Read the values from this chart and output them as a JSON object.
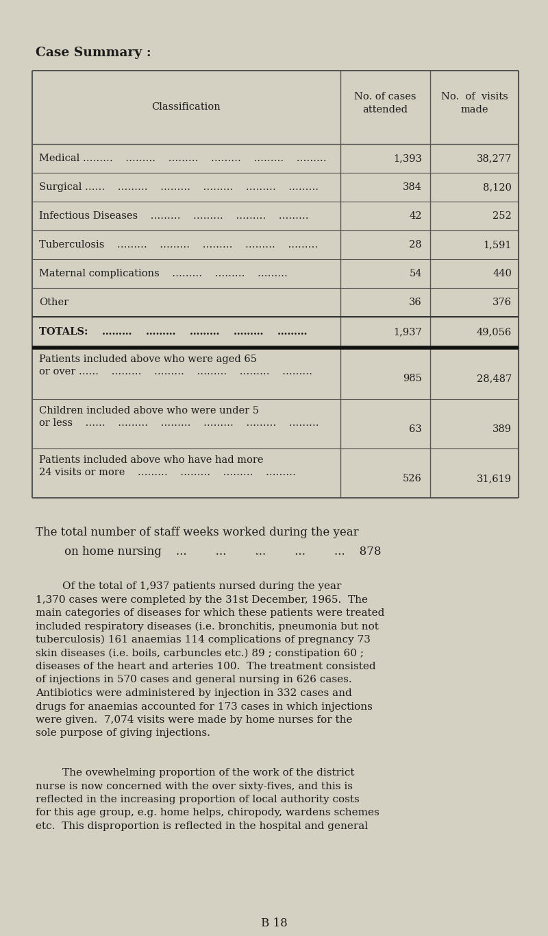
{
  "bg_color": "#d4d1c2",
  "title": "Case Summary :",
  "table_rows": [
    [
      "Medical ………    ………    ………    ………    ………    ………",
      "1,393",
      "38,277"
    ],
    [
      "Surgical ……    ………    ………    ………    ………    ………",
      "384",
      "8,120"
    ],
    [
      "Infectious Diseases    ………    ………    ………    ………",
      "42",
      "252"
    ],
    [
      "Tuberculosis    ………    ………    ………    ………    ………",
      "28",
      "1,591"
    ],
    [
      "Maternal complications    ………    ………    ………",
      "54",
      "440"
    ],
    [
      "Other",
      "36",
      "376"
    ]
  ],
  "totals_row": [
    "TOTALS:    ………    ………    ………    ………    ………",
    "1,937",
    "49,056"
  ],
  "extra_rows": [
    [
      "Patients included above who were aged 65",
      "or over ……    ………    ………    ………    ………    ………",
      "985",
      "28,487"
    ],
    [
      "Children included above who were under 5",
      "or less    ……    ………    ………    ………    ………    ………",
      "63",
      "389"
    ],
    [
      "Patients included above who have had more",
      "24 visits or more    ………    ………    ………    ………",
      "526",
      "31,619"
    ]
  ],
  "staff_line1": "The total number of staff weeks worked during the year",
  "staff_line2": "        on home nursing    ...        ...        ...        ...        ...    878",
  "para1_indent": "        Of the total of 1,937 patients nursed during the year",
  "para1_lines": [
    "        Of the total of 1,937 patients nursed during the year",
    "1,370 cases were completed by the 31st December, 1965.  The",
    "main categories of diseases for which these patients were treated",
    "included respiratory diseases (i.e. bronchitis, pneumonia but not",
    "tuberculosis) 161 anaemias 114 complications of pregnancy 73",
    "skin diseases (i.e. boils, carbuncles etc.) 89 ; constipation 60 ;",
    "diseases of the heart and arteries 100.  The treatment consisted",
    "of injections in 570 cases and general nursing in 626 cases.",
    "Antibiotics were administered by injection in 332 cases and",
    "drugs for anaemias accounted for 173 cases in which injections",
    "were given.  7,074 visits were made by home nurses for the",
    "sole purpose of giving injections."
  ],
  "para2_lines": [
    "        The ovewhelming proportion of the work of the district",
    "nurse is now concerned with the over sixty-fives, and this is",
    "reflected in the increasing proportion of local authority costs",
    "for this age group, e.g. home helps, chiropody, wardens schemes",
    "etc.  This disproportion is reflected in the hospital and general"
  ],
  "page_label": "B 18",
  "text_color": "#1c1c1c",
  "font_size_title": 13.5,
  "font_size_table_header": 10.5,
  "font_size_table": 10.5,
  "font_size_body": 11.0,
  "font_size_staff": 12.0
}
